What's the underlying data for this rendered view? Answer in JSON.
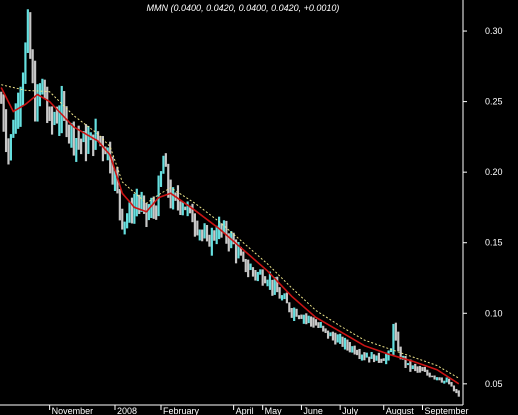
{
  "chart_data": {
    "type": "bar",
    "title": "MMN (0.0400, 0.0420, 0.0400, 0.0420, +0.0010)",
    "ylim": [
      0.035,
      0.322
    ],
    "yticks": [
      "0.30",
      "0.25",
      "0.20",
      "0.15",
      "0.10",
      "0.05"
    ],
    "ytick_values": [
      0.3,
      0.25,
      0.2,
      0.15,
      0.1,
      0.05
    ],
    "xtick_labels": [
      "November",
      "2008",
      "February",
      "April",
      "May",
      "June",
      "July",
      "August",
      "September"
    ],
    "xtick_positions": [
      20,
      47,
      66,
      96,
      108,
      124,
      140,
      158,
      174
    ],
    "x_total_bars": 190,
    "grid": false,
    "colors": {
      "background": "#000000",
      "bar_up": "#66e0e0",
      "bar_down": "#c8c8c8",
      "ma_short": "#cc1414",
      "ma_long": "#f0e68c",
      "text": "#ffffff"
    },
    "series": [
      {
        "kind": "price_bars",
        "anchors": [
          [
            0,
            0.25
          ],
          [
            3,
            0.215
          ],
          [
            6,
            0.242
          ],
          [
            9,
            0.27
          ],
          [
            11,
            0.3
          ],
          [
            14,
            0.245
          ],
          [
            17,
            0.262
          ],
          [
            20,
            0.235
          ],
          [
            25,
            0.243
          ],
          [
            30,
            0.225
          ],
          [
            35,
            0.22
          ],
          [
            40,
            0.225
          ],
          [
            44,
            0.215
          ],
          [
            47,
            0.195
          ],
          [
            50,
            0.165
          ],
          [
            53,
            0.17
          ],
          [
            56,
            0.18
          ],
          [
            60,
            0.17
          ],
          [
            64,
            0.175
          ],
          [
            67,
            0.208
          ],
          [
            70,
            0.18
          ],
          [
            75,
            0.178
          ],
          [
            80,
            0.165
          ],
          [
            85,
            0.15
          ],
          [
            90,
            0.16
          ],
          [
            95,
            0.152
          ],
          [
            100,
            0.135
          ],
          [
            105,
            0.128
          ],
          [
            110,
            0.125
          ],
          [
            115,
            0.112
          ],
          [
            120,
            0.102
          ],
          [
            125,
            0.098
          ],
          [
            130,
            0.092
          ],
          [
            135,
            0.085
          ],
          [
            140,
            0.08
          ],
          [
            145,
            0.075
          ],
          [
            150,
            0.07
          ],
          [
            155,
            0.068
          ],
          [
            158,
            0.068
          ],
          [
            161,
            0.072
          ],
          [
            162,
            0.093
          ],
          [
            164,
            0.072
          ],
          [
            168,
            0.063
          ],
          [
            172,
            0.06
          ],
          [
            176,
            0.057
          ],
          [
            180,
            0.055
          ],
          [
            185,
            0.05
          ],
          [
            187,
            0.045
          ],
          [
            189,
            0.042
          ]
        ]
      },
      {
        "kind": "ma_short",
        "points": [
          [
            0,
            0.26
          ],
          [
            5,
            0.243
          ],
          [
            10,
            0.248
          ],
          [
            15,
            0.255
          ],
          [
            20,
            0.25
          ],
          [
            30,
            0.232
          ],
          [
            40,
            0.222
          ],
          [
            45,
            0.212
          ],
          [
            50,
            0.185
          ],
          [
            55,
            0.175
          ],
          [
            60,
            0.172
          ],
          [
            65,
            0.182
          ],
          [
            70,
            0.185
          ],
          [
            80,
            0.173
          ],
          [
            90,
            0.16
          ],
          [
            100,
            0.145
          ],
          [
            110,
            0.13
          ],
          [
            120,
            0.112
          ],
          [
            130,
            0.097
          ],
          [
            140,
            0.087
          ],
          [
            150,
            0.077
          ],
          [
            160,
            0.071
          ],
          [
            170,
            0.066
          ],
          [
            180,
            0.06
          ],
          [
            189,
            0.05
          ]
        ]
      },
      {
        "kind": "ma_long",
        "points": [
          [
            0,
            0.262
          ],
          [
            10,
            0.258
          ],
          [
            20,
            0.257
          ],
          [
            30,
            0.24
          ],
          [
            40,
            0.227
          ],
          [
            45,
            0.218
          ],
          [
            50,
            0.193
          ],
          [
            60,
            0.178
          ],
          [
            65,
            0.184
          ],
          [
            70,
            0.189
          ],
          [
            80,
            0.178
          ],
          [
            90,
            0.165
          ],
          [
            100,
            0.15
          ],
          [
            110,
            0.135
          ],
          [
            120,
            0.118
          ],
          [
            130,
            0.102
          ],
          [
            140,
            0.091
          ],
          [
            150,
            0.081
          ],
          [
            160,
            0.075
          ],
          [
            170,
            0.069
          ],
          [
            180,
            0.063
          ],
          [
            189,
            0.054
          ]
        ]
      }
    ]
  }
}
